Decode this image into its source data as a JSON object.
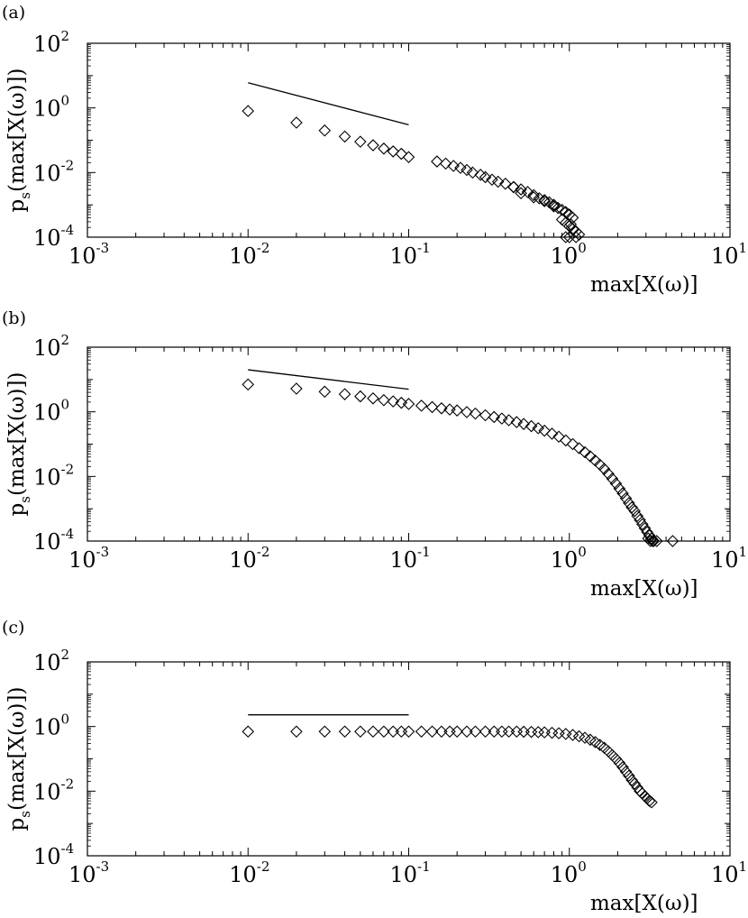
{
  "chart_data": [
    {
      "type": "scatter",
      "panel_label": "(a)",
      "xlabel": "max[X(ω)]",
      "ylabel_main": "p",
      "ylabel_sub": "s",
      "ylabel_rest": "(max[X(ω)])",
      "xscale": "log",
      "yscale": "log",
      "xlim": [
        0.001,
        10
      ],
      "ylim": [
        0.0001,
        100
      ],
      "x_tick_labels": [
        {
          "base": "10",
          "exp": "-3"
        },
        {
          "base": "10",
          "exp": "-2"
        },
        {
          "base": "10",
          "exp": "-1"
        },
        {
          "base": "10",
          "exp": "0"
        },
        {
          "base": "10",
          "exp": "1"
        }
      ],
      "y_tick_labels": [
        {
          "base": "10",
          "exp": "-4"
        },
        {
          "base": "10",
          "exp": "-2"
        },
        {
          "base": "10",
          "exp": "0"
        },
        {
          "base": "10",
          "exp": "2"
        }
      ],
      "grid": false,
      "marker": "diamond",
      "reference_line": {
        "x": [
          0.01,
          0.1
        ],
        "y": [
          6.0,
          0.3
        ]
      },
      "points": {
        "x": [
          0.01,
          0.02,
          0.03,
          0.04,
          0.05,
          0.06,
          0.07,
          0.08,
          0.09,
          0.1,
          0.15,
          0.17,
          0.19,
          0.21,
          0.23,
          0.25,
          0.28,
          0.3,
          0.33,
          0.36,
          0.4,
          0.45,
          0.5,
          0.55,
          0.6,
          0.65,
          0.7,
          0.75,
          0.8,
          0.85,
          0.9,
          0.95,
          1.0,
          1.05,
          0.9,
          0.95,
          1.0,
          1.05,
          1.1,
          0.8,
          0.7,
          0.6,
          0.5,
          0.45,
          1.0,
          1.1,
          1.15,
          0.95,
          1.02
        ],
        "y": [
          0.8,
          0.35,
          0.2,
          0.13,
          0.09,
          0.07,
          0.055,
          0.045,
          0.038,
          0.03,
          0.022,
          0.019,
          0.016,
          0.014,
          0.012,
          0.01,
          0.0085,
          0.0072,
          0.006,
          0.0052,
          0.0045,
          0.0036,
          0.003,
          0.0025,
          0.002,
          0.0016,
          0.0014,
          0.0012,
          0.001,
          0.0008,
          0.0007,
          0.0006,
          0.0005,
          0.0004,
          0.00035,
          0.00028,
          0.00022,
          0.00018,
          0.00015,
          0.0009,
          0.0013,
          0.0017,
          0.0023,
          0.0035,
          0.0001,
          0.0001,
          0.00012,
          0.0001,
          0.00025
        ]
      }
    },
    {
      "type": "scatter",
      "panel_label": "(b)",
      "xlabel": "max[X(ω)]",
      "ylabel_main": "p",
      "ylabel_sub": "s",
      "ylabel_rest": "(max[X(ω)])",
      "xscale": "log",
      "yscale": "log",
      "xlim": [
        0.001,
        10
      ],
      "ylim": [
        0.0001,
        100
      ],
      "x_tick_labels": [
        {
          "base": "10",
          "exp": "-3"
        },
        {
          "base": "10",
          "exp": "-2"
        },
        {
          "base": "10",
          "exp": "-1"
        },
        {
          "base": "10",
          "exp": "0"
        },
        {
          "base": "10",
          "exp": "1"
        }
      ],
      "y_tick_labels": [
        {
          "base": "10",
          "exp": "-4"
        },
        {
          "base": "10",
          "exp": "-2"
        },
        {
          "base": "10",
          "exp": "0"
        },
        {
          "base": "10",
          "exp": "2"
        }
      ],
      "grid": false,
      "marker": "diamond",
      "reference_line": {
        "x": [
          0.01,
          0.1
        ],
        "y": [
          20.0,
          5.0
        ]
      },
      "points": {
        "x": [
          0.01,
          0.02,
          0.03,
          0.04,
          0.05,
          0.06,
          0.07,
          0.08,
          0.09,
          0.1,
          0.12,
          0.14,
          0.16,
          0.18,
          0.2,
          0.23,
          0.26,
          0.3,
          0.34,
          0.38,
          0.42,
          0.47,
          0.52,
          0.58,
          0.64,
          0.7,
          0.78,
          0.86,
          0.95,
          1.05,
          1.15,
          1.25,
          1.35,
          1.45,
          1.55,
          1.65,
          1.75,
          1.85,
          1.95,
          2.05,
          2.15,
          2.25,
          2.35,
          2.45,
          2.55,
          2.65,
          2.75,
          2.85,
          2.95,
          3.05,
          3.15,
          3.25,
          3.35,
          3.5,
          3.1,
          3.2,
          3.3,
          4.4
        ],
        "y": [
          7.0,
          5.2,
          4.2,
          3.5,
          3.0,
          2.6,
          2.3,
          2.1,
          1.9,
          1.75,
          1.55,
          1.4,
          1.28,
          1.18,
          1.1,
          0.98,
          0.88,
          0.78,
          0.69,
          0.62,
          0.55,
          0.48,
          0.42,
          0.36,
          0.31,
          0.26,
          0.21,
          0.17,
          0.13,
          0.1,
          0.075,
          0.056,
          0.042,
          0.031,
          0.023,
          0.017,
          0.012,
          0.0085,
          0.006,
          0.0042,
          0.003,
          0.0021,
          0.0015,
          0.0011,
          0.00085,
          0.0006,
          0.00045,
          0.00033,
          0.00025,
          0.00019,
          0.00015,
          0.00012,
          0.0001,
          0.0001,
          0.00012,
          0.0001,
          0.0001,
          0.0001
        ]
      }
    },
    {
      "type": "scatter",
      "panel_label": "(c)",
      "xlabel": "max[X(ω)]",
      "ylabel_main": "p",
      "ylabel_sub": "s",
      "ylabel_rest": "(max[X(ω)])",
      "xscale": "log",
      "yscale": "log",
      "xlim": [
        0.001,
        10
      ],
      "ylim": [
        0.0001,
        100
      ],
      "x_tick_labels": [
        {
          "base": "10",
          "exp": "-3"
        },
        {
          "base": "10",
          "exp": "-2"
        },
        {
          "base": "10",
          "exp": "-1"
        },
        {
          "base": "10",
          "exp": "0"
        },
        {
          "base": "10",
          "exp": "1"
        }
      ],
      "y_tick_labels": [
        {
          "base": "10",
          "exp": "-4"
        },
        {
          "base": "10",
          "exp": "-2"
        },
        {
          "base": "10",
          "exp": "0"
        },
        {
          "base": "10",
          "exp": "2"
        }
      ],
      "grid": false,
      "marker": "diamond",
      "reference_line": {
        "x": [
          0.01,
          0.1
        ],
        "y": [
          2.3,
          2.3
        ]
      },
      "points": {
        "x": [
          0.01,
          0.02,
          0.03,
          0.04,
          0.05,
          0.06,
          0.07,
          0.08,
          0.09,
          0.1,
          0.12,
          0.14,
          0.16,
          0.18,
          0.2,
          0.23,
          0.26,
          0.3,
          0.34,
          0.38,
          0.42,
          0.47,
          0.52,
          0.58,
          0.64,
          0.7,
          0.78,
          0.86,
          0.95,
          1.05,
          1.15,
          1.25,
          1.35,
          1.45,
          1.55,
          1.65,
          1.75,
          1.85,
          1.95,
          2.05,
          2.15,
          2.25,
          2.35,
          2.45,
          2.55,
          2.65,
          2.75,
          2.85,
          2.95,
          3.05,
          3.15,
          3.25
        ],
        "y": [
          0.7,
          0.7,
          0.7,
          0.7,
          0.7,
          0.7,
          0.7,
          0.7,
          0.7,
          0.7,
          0.7,
          0.7,
          0.7,
          0.7,
          0.7,
          0.7,
          0.7,
          0.7,
          0.7,
          0.7,
          0.7,
          0.7,
          0.69,
          0.68,
          0.67,
          0.66,
          0.64,
          0.62,
          0.59,
          0.55,
          0.5,
          0.45,
          0.39,
          0.33,
          0.27,
          0.22,
          0.17,
          0.13,
          0.1,
          0.075,
          0.055,
          0.04,
          0.03,
          0.022,
          0.017,
          0.013,
          0.01,
          0.0085,
          0.007,
          0.006,
          0.005,
          0.0045
        ]
      }
    }
  ]
}
